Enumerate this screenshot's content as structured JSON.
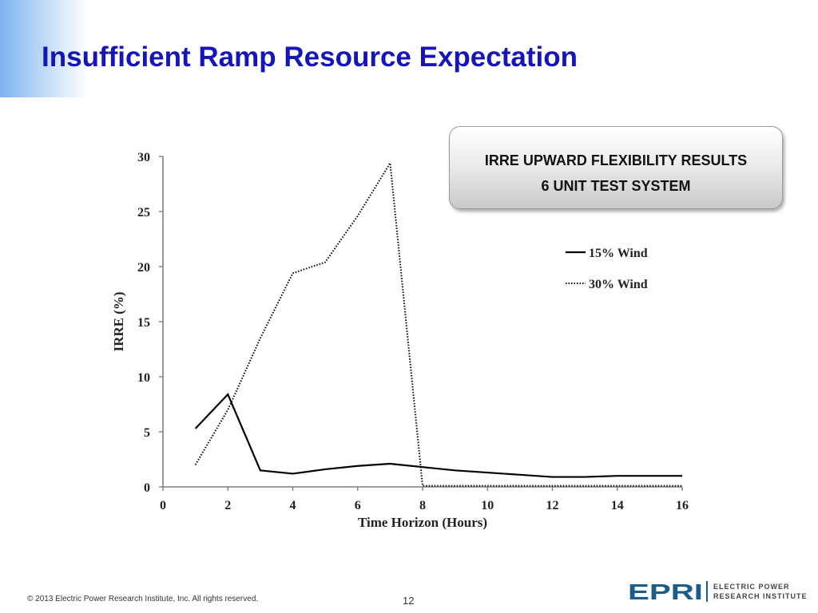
{
  "slide": {
    "title": "Insufficient Ramp Resource Expectation",
    "box_line1": "IRRE UPWARD FLEXIBILITY RESULTS",
    "box_line2": "6 UNIT TEST SYSTEM",
    "copyright": "© 2013 Electric Power Research Institute, Inc. All rights reserved.",
    "page_number": "12",
    "logo_text": "EPRI",
    "logo_line1": "ELECTRIC POWER",
    "logo_line2": "RESEARCH INSTITUTE",
    "title_color": "#1515b8",
    "logo_color": "#1a5d8a"
  },
  "chart_data": {
    "type": "line",
    "title": "",
    "xlabel": "Time Horizon (Hours)",
    "ylabel": "IRRE (%)",
    "xlim": [
      0,
      16
    ],
    "ylim": [
      0,
      30
    ],
    "xticks": [
      0,
      2,
      4,
      6,
      8,
      10,
      12,
      14,
      16
    ],
    "yticks": [
      0,
      5,
      10,
      15,
      20,
      25,
      30
    ],
    "grid": false,
    "legend": "top-right",
    "series": [
      {
        "name": "15% Wind",
        "style": "solid",
        "x": [
          1,
          2,
          3,
          4,
          5,
          6,
          7,
          8,
          9,
          10,
          11,
          12,
          13,
          14,
          15,
          16
        ],
        "y": [
          5.3,
          8.4,
          1.5,
          1.2,
          1.6,
          1.9,
          2.1,
          1.8,
          1.5,
          1.3,
          1.1,
          0.9,
          0.9,
          1.0,
          1.0,
          1.0
        ]
      },
      {
        "name": "30% Wind",
        "style": "dotted",
        "x": [
          1,
          2,
          3,
          4,
          5,
          6,
          7,
          8,
          9,
          10,
          11,
          12,
          13,
          14,
          15,
          16
        ],
        "y": [
          2.0,
          7.0,
          13.5,
          19.4,
          20.4,
          24.6,
          29.4,
          0.1,
          0.1,
          0.1,
          0.1,
          0.1,
          0.1,
          0.1,
          0.1,
          0.1
        ]
      }
    ]
  }
}
